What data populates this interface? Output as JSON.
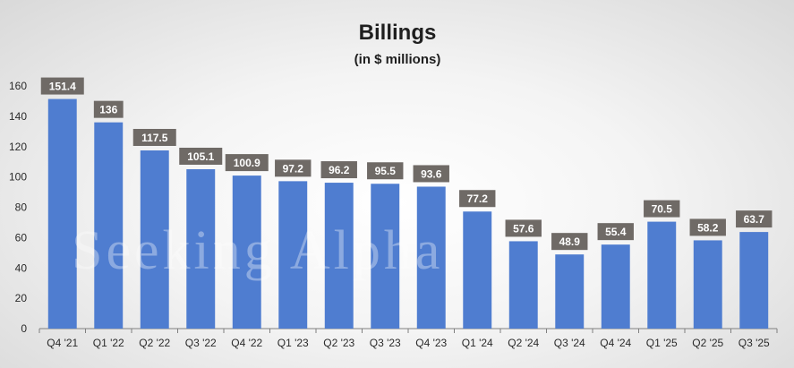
{
  "watermark": "Seeking Alpha",
  "colors": {
    "bar": "#4f7dd0",
    "label_bg": "#6f6a66",
    "axis": "#7f7f7f",
    "label_text": "#ffffff"
  },
  "chart_data": {
    "type": "bar",
    "title": "Billings",
    "subtitle": "(in $ millions)",
    "xlabel": "",
    "ylabel": "",
    "ylim": [
      0,
      160
    ],
    "yticks": [
      0,
      20,
      40,
      60,
      80,
      100,
      120,
      140,
      160
    ],
    "grid": false,
    "categories": [
      "Q4 '21",
      "Q1 '22",
      "Q2 '22",
      "Q3 '22",
      "Q4 '22",
      "Q1 '23",
      "Q2 '23",
      "Q3 '23",
      "Q4 '23",
      "Q1 '24",
      "Q2 '24",
      "Q3 '24",
      "Q4 '24",
      "Q1 '25",
      "Q2 '25",
      "Q3 '25"
    ],
    "values": [
      151.4,
      136,
      117.5,
      105.1,
      100.9,
      97.2,
      96.2,
      95.5,
      93.6,
      77.2,
      57.6,
      48.9,
      55.4,
      70.5,
      58.2,
      63.7
    ],
    "data_labels": [
      "151.4",
      "136",
      "117.5",
      "105.1",
      "100.9",
      "97.2",
      "96.2",
      "95.5",
      "93.6",
      "77.2",
      "57.6",
      "48.9",
      "55.4",
      "70.5",
      "58.2",
      "63.7"
    ]
  }
}
